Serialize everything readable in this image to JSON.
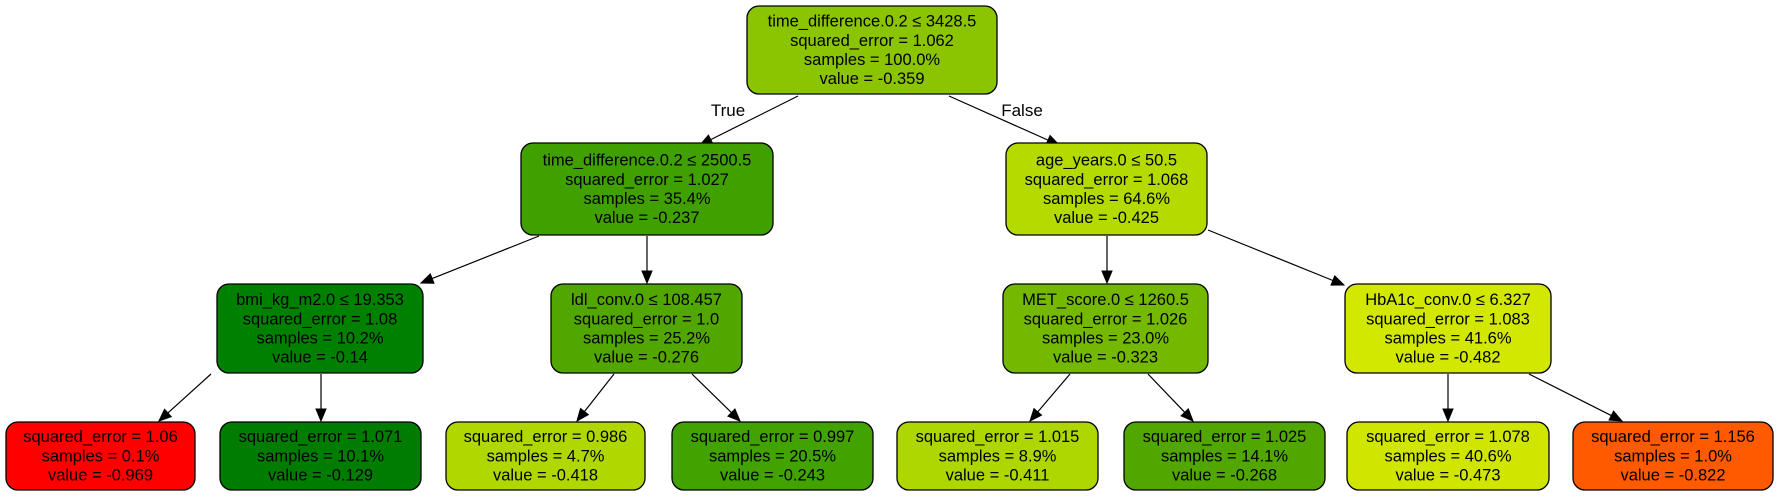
{
  "edge_labels": {
    "true_label": "True",
    "false_label": "False"
  },
  "nodes": [
    {
      "id": "root",
      "color": "#8bc400",
      "lines": [
        "time_difference.0.2 ≤ 3428.5",
        "squared_error = 1.062",
        "samples = 100.0%",
        "value = -0.359"
      ]
    },
    {
      "id": "n1",
      "color": "#40a000",
      "lines": [
        "time_difference.0.2 ≤ 2500.5",
        "squared_error = 1.027",
        "samples = 35.4%",
        "value = -0.237"
      ]
    },
    {
      "id": "n2",
      "color": "#b5da00",
      "lines": [
        "age_years.0 ≤ 50.5",
        "squared_error = 1.068",
        "samples = 64.6%",
        "value = -0.425"
      ]
    },
    {
      "id": "n3",
      "color": "#008000",
      "lines": [
        "bmi_kg_m2.0 ≤ 19.353",
        "squared_error = 1.08",
        "samples = 10.2%",
        "value = -0.14"
      ]
    },
    {
      "id": "n4",
      "color": "#52a600",
      "lines": [
        "ldl_conv.0 ≤ 108.457",
        "squared_error = 1.0",
        "samples = 25.2%",
        "value = -0.276"
      ]
    },
    {
      "id": "n5",
      "color": "#74b800",
      "lines": [
        "MET_score.0 ≤ 1260.5",
        "squared_error = 1.026",
        "samples = 23.0%",
        "value = -0.323"
      ]
    },
    {
      "id": "n6",
      "color": "#d3e800",
      "lines": [
        "HbA1c_conv.0 ≤ 6.327",
        "squared_error = 1.083",
        "samples = 41.6%",
        "value = -0.482"
      ]
    },
    {
      "id": "l1",
      "color": "#ff0000",
      "lines": [
        "squared_error = 1.06",
        "samples = 0.1%",
        "value = -0.969"
      ]
    },
    {
      "id": "l2",
      "color": "#007c00",
      "lines": [
        "squared_error = 1.071",
        "samples = 10.1%",
        "value = -0.129"
      ]
    },
    {
      "id": "l3",
      "color": "#b0d800",
      "lines": [
        "squared_error = 0.986",
        "samples = 4.7%",
        "value = -0.418"
      ]
    },
    {
      "id": "l4",
      "color": "#42a200",
      "lines": [
        "squared_error = 0.997",
        "samples = 20.5%",
        "value = -0.243"
      ]
    },
    {
      "id": "l5",
      "color": "#aed600",
      "lines": [
        "squared_error = 1.015",
        "samples = 8.9%",
        "value = -0.411"
      ]
    },
    {
      "id": "l6",
      "color": "#52a600",
      "lines": [
        "squared_error = 1.025",
        "samples = 14.1%",
        "value = -0.268"
      ]
    },
    {
      "id": "l7",
      "color": "#d0e600",
      "lines": [
        "squared_error = 1.078",
        "samples = 40.6%",
        "value = -0.473"
      ]
    },
    {
      "id": "l8",
      "color": "#ff5a00",
      "lines": [
        "squared_error = 1.156",
        "samples = 1.0%",
        "value = -0.822"
      ]
    }
  ],
  "edges": [
    {
      "from": "root",
      "to": "n1"
    },
    {
      "from": "root",
      "to": "n2"
    },
    {
      "from": "n1",
      "to": "n3"
    },
    {
      "from": "n1",
      "to": "n4"
    },
    {
      "from": "n2",
      "to": "n5"
    },
    {
      "from": "n2",
      "to": "n6"
    },
    {
      "from": "n3",
      "to": "l1"
    },
    {
      "from": "n3",
      "to": "l2"
    },
    {
      "from": "n4",
      "to": "l3"
    },
    {
      "from": "n4",
      "to": "l4"
    },
    {
      "from": "n5",
      "to": "l5"
    },
    {
      "from": "n5",
      "to": "l6"
    },
    {
      "from": "n6",
      "to": "l7"
    },
    {
      "from": "n6",
      "to": "l8"
    }
  ]
}
